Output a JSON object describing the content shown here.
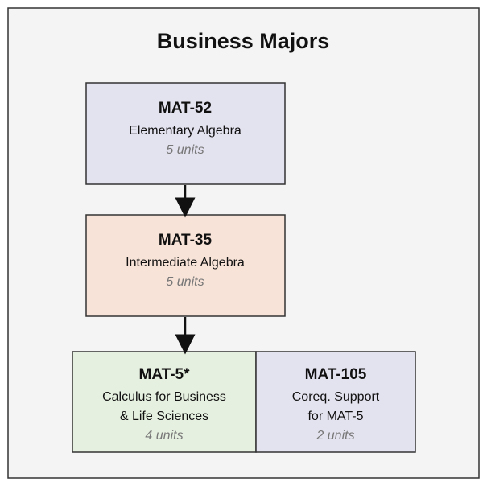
{
  "title": "Business Majors",
  "nodes": [
    {
      "code": "MAT-52",
      "name": [
        "Elementary Algebra"
      ],
      "units": "5 units"
    },
    {
      "code": "MAT-35",
      "name": [
        "Intermediate Algebra"
      ],
      "units": "5 units"
    },
    {
      "code": "MAT-5*",
      "name": [
        "Calculus for Business",
        "& Life Sciences"
      ],
      "units": "4 units"
    },
    {
      "code": "MAT-105",
      "name": [
        "Coreq. Support",
        "for MAT-5"
      ],
      "units": "2 units"
    }
  ]
}
